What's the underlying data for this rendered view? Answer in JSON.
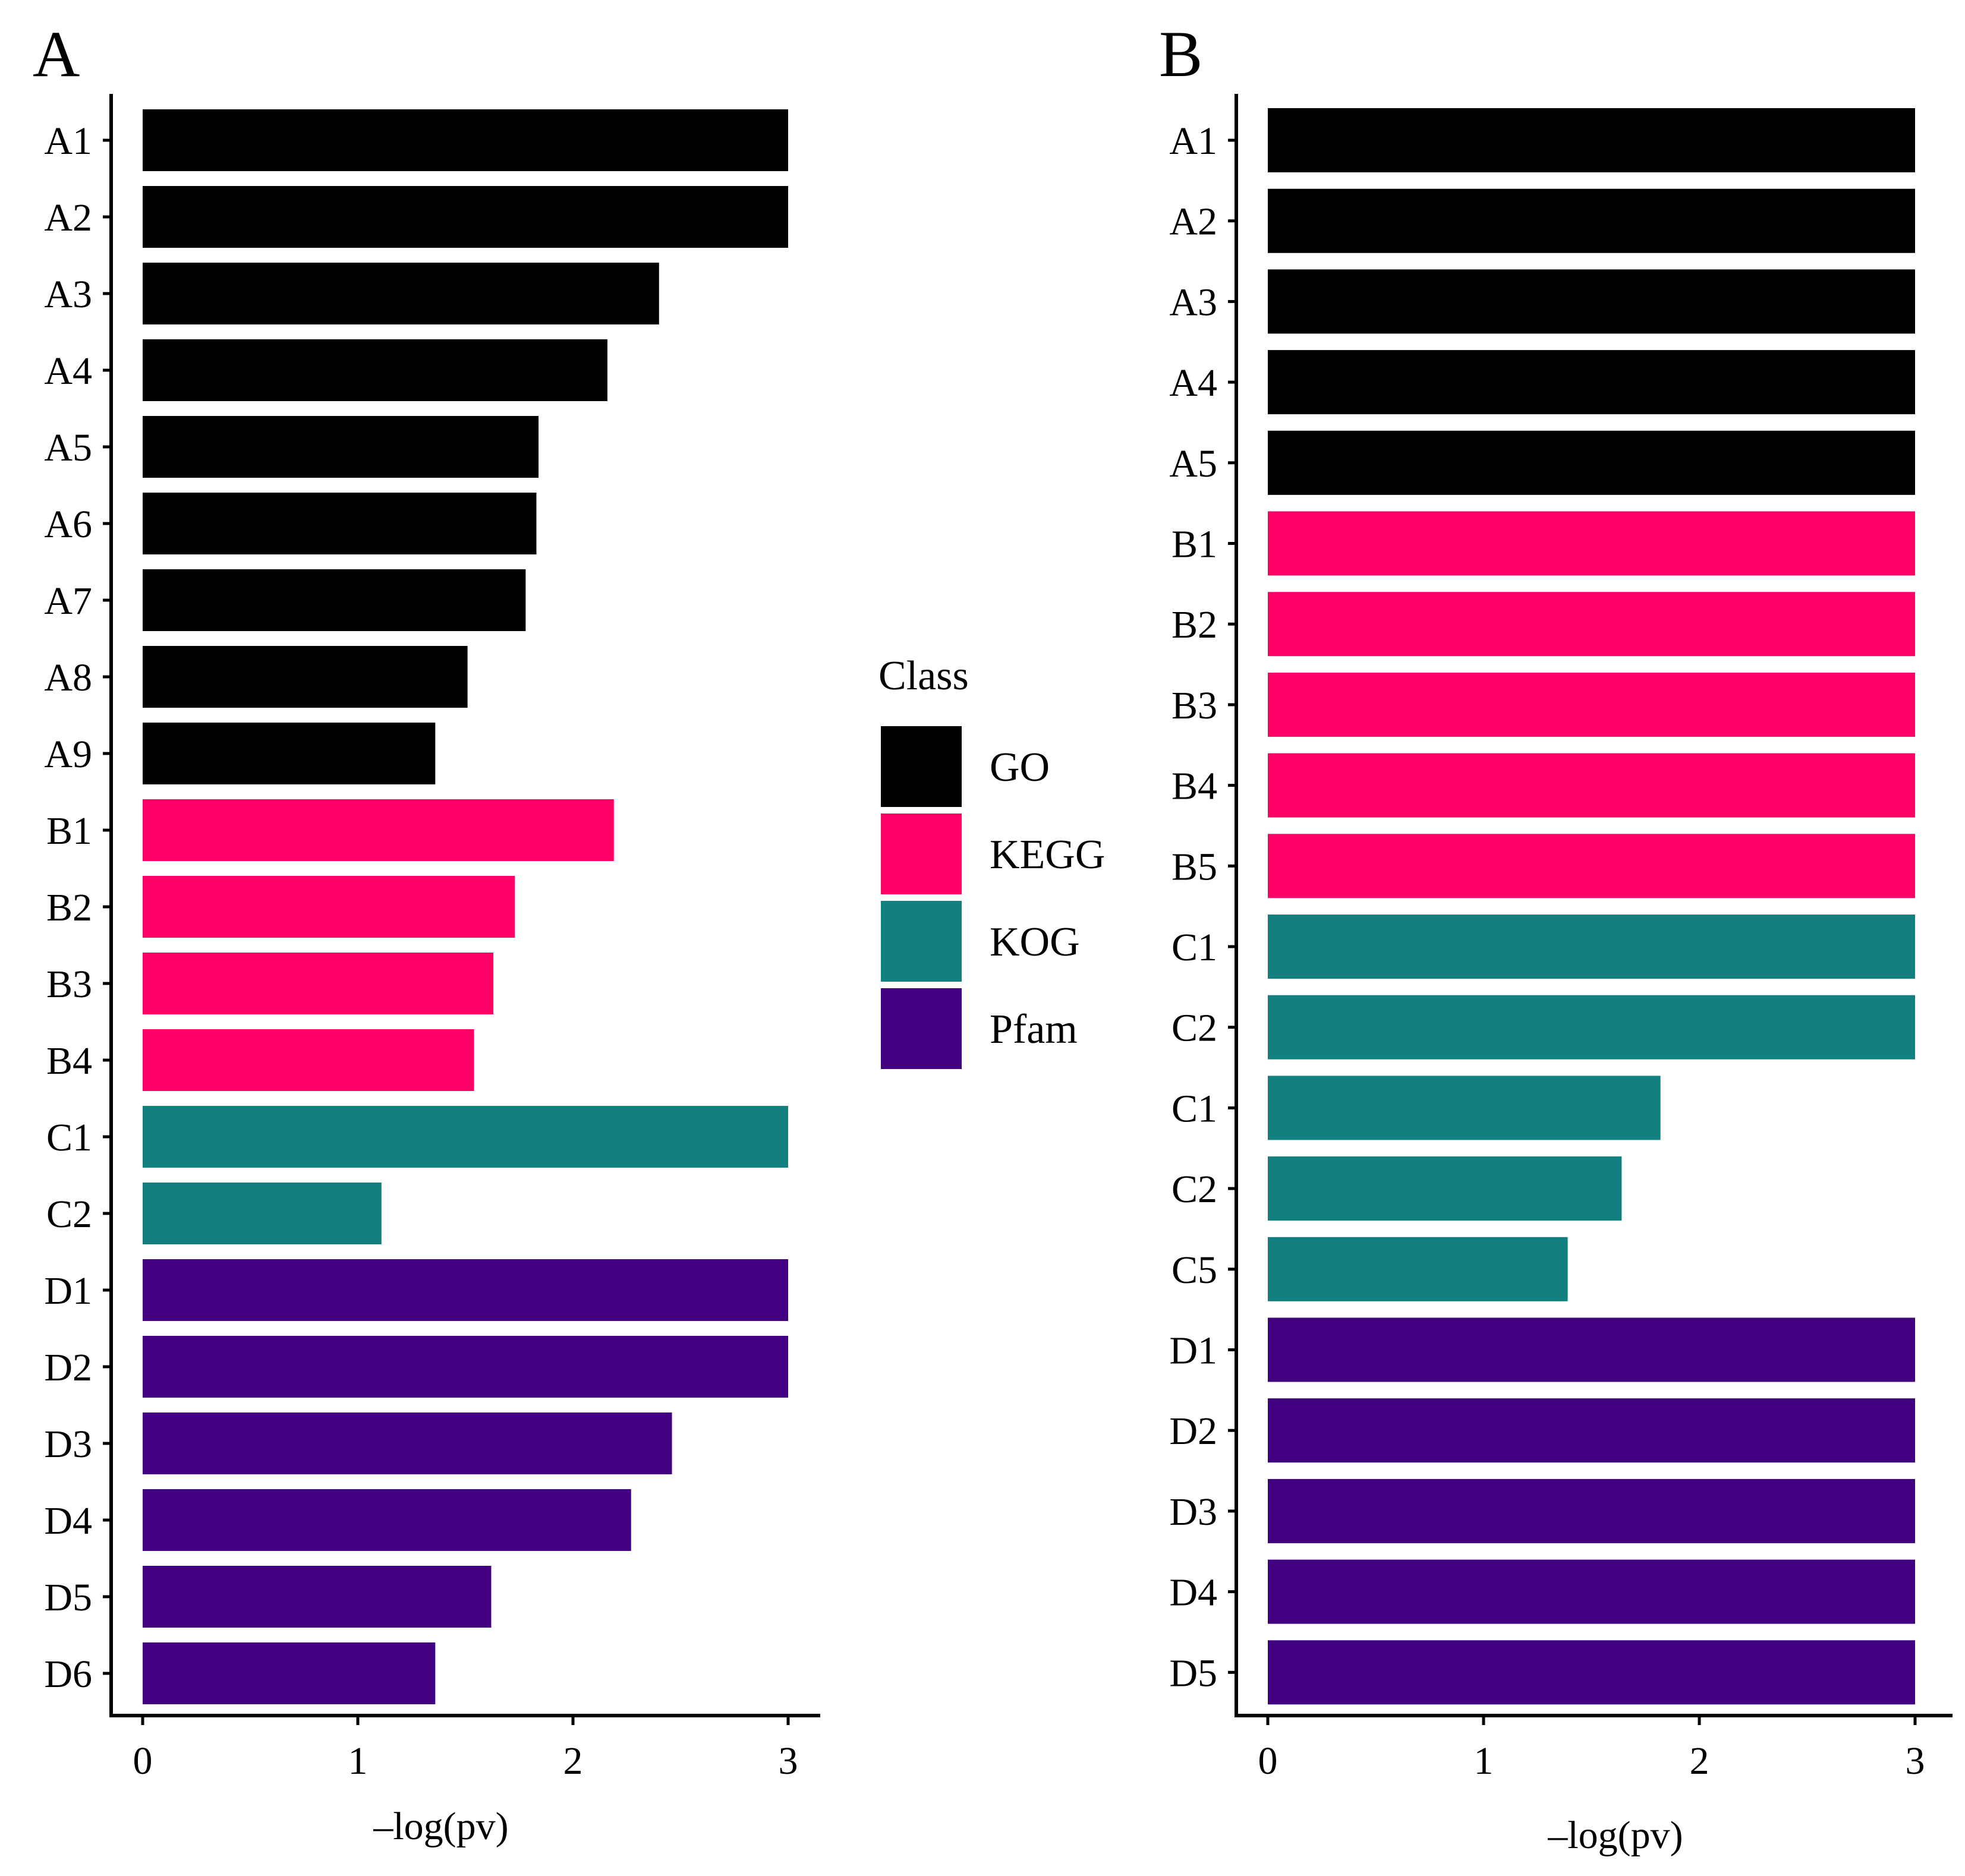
{
  "legend": {
    "title": "Class",
    "items": [
      {
        "key": "GO",
        "label": "GO",
        "color": "#000000"
      },
      {
        "key": "KEGG",
        "label": "KEGG",
        "color": "#ff0066"
      },
      {
        "key": "KOG",
        "label": "KOG",
        "color": "#128080"
      },
      {
        "key": "Pfam",
        "label": "Pfam",
        "color": "#400080"
      }
    ]
  },
  "chart_data": [
    {
      "panel": "A",
      "type": "bar",
      "orientation": "horizontal",
      "xlabel": "–log(pv)",
      "xlim": [
        0,
        3
      ],
      "xticks": [
        "0",
        "1",
        "2",
        "3"
      ],
      "categories": [
        "A1",
        "A2",
        "A3",
        "A4",
        "A5",
        "A6",
        "A7",
        "A8",
        "A9",
        "B1",
        "B2",
        "B3",
        "B4",
        "C1",
        "C2",
        "D1",
        "D2",
        "D3",
        "D4",
        "D5",
        "D6"
      ],
      "values": [
        3.0,
        3.0,
        2.4,
        2.16,
        1.84,
        1.83,
        1.78,
        1.51,
        1.36,
        2.19,
        1.73,
        1.63,
        1.54,
        3.0,
        1.11,
        3.0,
        3.0,
        2.46,
        2.27,
        1.62,
        1.36
      ],
      "classes": [
        "GO",
        "GO",
        "GO",
        "GO",
        "GO",
        "GO",
        "GO",
        "GO",
        "GO",
        "KEGG",
        "KEGG",
        "KEGG",
        "KEGG",
        "KOG",
        "KOG",
        "Pfam",
        "Pfam",
        "Pfam",
        "Pfam",
        "Pfam",
        "Pfam"
      ]
    },
    {
      "panel": "B",
      "type": "bar",
      "orientation": "horizontal",
      "xlabel": "–log(pv)",
      "xlim": [
        0,
        3
      ],
      "xticks": [
        "0",
        "1",
        "2",
        "3"
      ],
      "categories": [
        "A1",
        "A2",
        "A3",
        "A4",
        "A5",
        "B1",
        "B2",
        "B3",
        "B4",
        "B5",
        "C1",
        "C2",
        "C1",
        "C2",
        "C5",
        "D1",
        "D2",
        "D3",
        "D4",
        "D5"
      ],
      "values": [
        3.0,
        3.0,
        3.0,
        3.0,
        3.0,
        3.0,
        3.0,
        3.0,
        3.0,
        3.0,
        3.0,
        3.0,
        1.82,
        1.64,
        1.39,
        3.0,
        3.0,
        3.0,
        3.0,
        3.0
      ],
      "classes": [
        "GO",
        "GO",
        "GO",
        "GO",
        "GO",
        "KEGG",
        "KEGG",
        "KEGG",
        "KEGG",
        "KEGG",
        "KOG",
        "KOG",
        "KOG",
        "KOG",
        "KOG",
        "Pfam",
        "Pfam",
        "Pfam",
        "Pfam",
        "Pfam"
      ]
    }
  ]
}
